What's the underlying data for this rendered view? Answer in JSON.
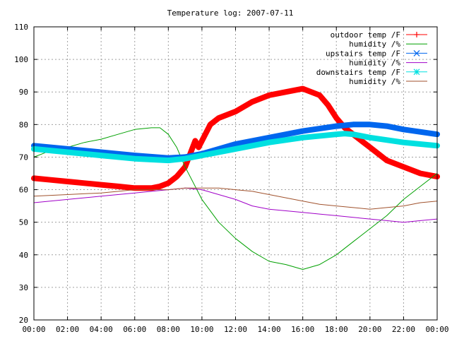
{
  "chart_data": {
    "type": "line",
    "title": "Temperature log: 2007-07-11",
    "xlabel": "",
    "ylabel": "",
    "xlim": [
      0,
      24
    ],
    "ylim": [
      20,
      110
    ],
    "grid": true,
    "legend_position": "top-right",
    "x_ticks": [
      "00:00",
      "02:00",
      "04:00",
      "06:00",
      "08:00",
      "10:00",
      "12:00",
      "14:00",
      "16:00",
      "18:00",
      "20:00",
      "22:00",
      "00:00"
    ],
    "y_ticks": [
      "20",
      "30",
      "40",
      "50",
      "60",
      "70",
      "80",
      "90",
      "100",
      "110"
    ],
    "series": [
      {
        "name": "outdoor temp /F",
        "color": "#ff0000",
        "marker": "plus",
        "x": [
          0,
          1,
          2,
          3,
          4,
          5,
          6,
          7,
          7.5,
          8,
          8.5,
          9,
          9.3,
          9.6,
          9.8,
          10,
          10.5,
          11,
          12,
          13,
          14,
          15,
          16,
          17,
          17.5,
          18,
          18.5,
          19,
          19.5,
          20,
          20.5,
          21,
          22,
          23,
          24
        ],
        "y": [
          63.5,
          63,
          62.5,
          62,
          61.5,
          61,
          60.5,
          60.5,
          61,
          62,
          64,
          67,
          71,
          75,
          73,
          75,
          80,
          82,
          84,
          87,
          89,
          90,
          91,
          89,
          86,
          82,
          79,
          77,
          75,
          73,
          71,
          69,
          67,
          65,
          64
        ]
      },
      {
        "name": "humidity /%",
        "color": "#00a000",
        "marker": "none",
        "x": [
          0,
          1,
          2,
          3,
          4,
          5,
          6,
          7,
          7.5,
          8,
          8.5,
          9,
          9.5,
          10,
          11,
          12,
          13,
          14,
          15,
          16,
          17,
          18,
          19,
          20,
          21,
          22,
          23,
          24
        ],
        "y": [
          70,
          72,
          73,
          74.5,
          75.5,
          77,
          78.5,
          79,
          79,
          77,
          73,
          67,
          62,
          57,
          50,
          45,
          41,
          38,
          37,
          35.5,
          37,
          40,
          44,
          48,
          52,
          57,
          61,
          65
        ]
      },
      {
        "name": "upstairs temp /F",
        "color": "#0066ee",
        "marker": "x",
        "x": [
          0,
          2,
          4,
          6,
          8,
          9,
          10,
          12,
          14,
          16,
          18,
          19,
          20,
          21,
          22,
          24
        ],
        "y": [
          73.5,
          72.5,
          71.5,
          70.5,
          69.7,
          70,
          71,
          74,
          76,
          78,
          79.5,
          80,
          80,
          79.5,
          78.5,
          77
        ]
      },
      {
        "name": "humidity /%",
        "color": "#a000c8",
        "marker": "none",
        "x": [
          0,
          2,
          4,
          6,
          7,
          8,
          9,
          10,
          11,
          12,
          13,
          14,
          15,
          16,
          17,
          18,
          19,
          20,
          21,
          22,
          23,
          24
        ],
        "y": [
          56,
          57,
          58,
          59,
          59.5,
          60,
          60.5,
          60,
          58.5,
          57,
          55,
          54,
          53.5,
          53,
          52.5,
          52,
          51.5,
          51,
          50.5,
          50,
          50.5,
          51
        ]
      },
      {
        "name": "downstairs temp /F",
        "color": "#00e0e0",
        "marker": "star",
        "x": [
          0,
          2,
          4,
          6,
          8,
          9,
          10,
          12,
          14,
          16,
          18,
          18.5,
          19,
          20,
          22,
          24
        ],
        "y": [
          72.5,
          71.5,
          70.5,
          69.5,
          69,
          69.5,
          70.5,
          72.5,
          74.5,
          76,
          77,
          77.2,
          77,
          76,
          74.5,
          73.5
        ]
      },
      {
        "name": "humidity /%",
        "color": "#a0522d",
        "marker": "none",
        "x": [
          0,
          2,
          4,
          6,
          8,
          9,
          10,
          11,
          12,
          13,
          14,
          15,
          16,
          17,
          18,
          19,
          20,
          21,
          22,
          23,
          24
        ],
        "y": [
          58,
          58.5,
          59,
          60,
          60,
          60.5,
          60.5,
          60.5,
          60,
          59.5,
          58.5,
          57.5,
          56.5,
          55.5,
          55,
          54.5,
          54,
          54.5,
          55,
          56,
          56.5
        ]
      }
    ]
  }
}
